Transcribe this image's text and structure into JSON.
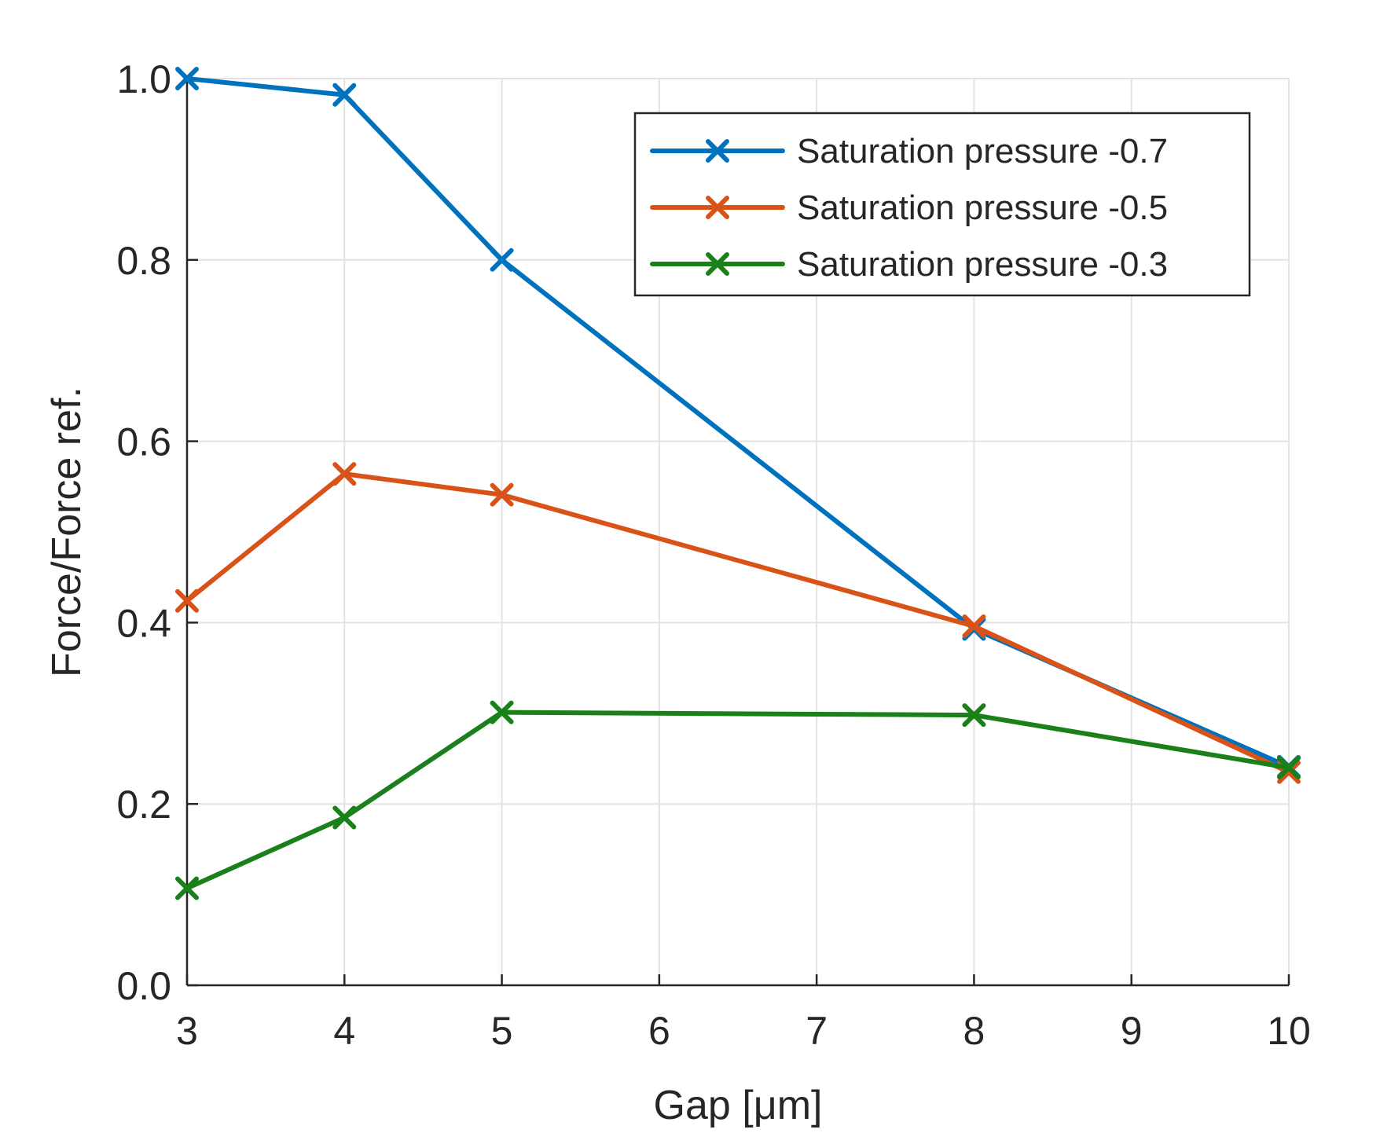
{
  "chart_data": {
    "type": "line",
    "title": "",
    "xlabel": "Gap [μm]",
    "ylabel": "Force/Force ref.",
    "xlim": [
      3,
      10
    ],
    "ylim": [
      0.0,
      1.0
    ],
    "x_ticks": [
      "3",
      "4",
      "5",
      "6",
      "7",
      "8",
      "9",
      "10"
    ],
    "y_ticks": [
      "0.0",
      "0.2",
      "0.4",
      "0.6",
      "0.8",
      "1.0"
    ],
    "grid": true,
    "legend_position": "top-right",
    "x": [
      3,
      4,
      5,
      8,
      10
    ],
    "series": [
      {
        "name": "Saturation pressure -0.7",
        "color": "#0072BD",
        "marker": "x",
        "values": [
          1.0,
          0.982,
          0.8,
          0.393,
          0.241
        ]
      },
      {
        "name": "Saturation pressure -0.5",
        "color": "#D95319",
        "marker": "x",
        "values": [
          0.424,
          0.564,
          0.541,
          0.396,
          0.235
        ]
      },
      {
        "name": "Saturation pressure -0.3",
        "color": "#1A801A",
        "marker": "x",
        "values": [
          0.107,
          0.185,
          0.301,
          0.298,
          0.24
        ]
      }
    ]
  }
}
